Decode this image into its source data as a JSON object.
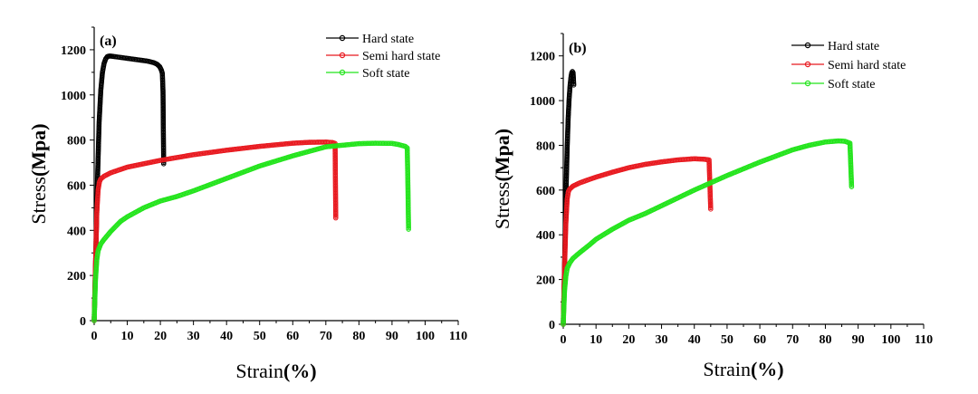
{
  "chart_data": [
    {
      "type": "line",
      "panel_label": "(a)",
      "xlabel_main": "Strain",
      "xlabel_unit": "(%)",
      "ylabel_main": "Stress",
      "ylabel_unit": "(Mpa)",
      "xlim": [
        0,
        110
      ],
      "ylim": [
        0,
        1300
      ],
      "xticks": [
        0,
        10,
        20,
        30,
        40,
        50,
        60,
        70,
        80,
        90,
        100,
        110
      ],
      "yticks": [
        0,
        200,
        400,
        600,
        800,
        1000,
        1200
      ],
      "grid": false,
      "legend_position": "top-right",
      "series": [
        {
          "name": "Hard state",
          "color": "#000000",
          "x": [
            0,
            0.5,
            1.0,
            1.5,
            2.0,
            2.5,
            3.0,
            3.5,
            4.0,
            4.5,
            5,
            6,
            8,
            10,
            12,
            14,
            16,
            18,
            19,
            19.8,
            20.3,
            20.6,
            20.8,
            20.9,
            21.0
          ],
          "y": [
            0,
            300,
            620,
            880,
            1020,
            1100,
            1140,
            1160,
            1170,
            1172,
            1172,
            1170,
            1166,
            1162,
            1158,
            1154,
            1150,
            1143,
            1136,
            1125,
            1110,
            1095,
            1015,
            850,
            695
          ]
        },
        {
          "name": "Semi hard state",
          "color": "#e8191f",
          "x": [
            0,
            0.4,
            0.8,
            1.2,
            1.6,
            2,
            3,
            5,
            8,
            10,
            15,
            20,
            30,
            40,
            50,
            60,
            65,
            70,
            72,
            72.8,
            73.0
          ],
          "y": [
            0,
            250,
            480,
            580,
            615,
            628,
            640,
            655,
            670,
            680,
            695,
            710,
            735,
            755,
            772,
            786,
            790,
            791,
            789,
            785,
            455
          ]
        },
        {
          "name": "Soft state",
          "color": "#22e41b",
          "x": [
            0,
            0.4,
            0.8,
            1.2,
            2,
            3,
            5,
            8,
            10,
            15,
            20,
            25,
            30,
            40,
            50,
            60,
            70,
            80,
            85,
            90,
            92,
            94,
            94.6,
            94.8,
            95.0
          ],
          "y": [
            0,
            180,
            270,
            310,
            340,
            360,
            395,
            440,
            460,
            500,
            530,
            550,
            575,
            630,
            685,
            730,
            770,
            784,
            786,
            785,
            780,
            772,
            765,
            600,
            405
          ]
        }
      ]
    },
    {
      "type": "line",
      "panel_label": "(b)",
      "xlabel_main": "Strain",
      "xlabel_unit": "(%)",
      "ylabel_main": "Stress",
      "ylabel_unit": "(Mpa)",
      "xlim": [
        0,
        110
      ],
      "ylim": [
        0,
        1300
      ],
      "xticks": [
        0,
        10,
        20,
        30,
        40,
        50,
        60,
        70,
        80,
        90,
        100,
        110
      ],
      "yticks": [
        0,
        200,
        400,
        600,
        800,
        1000,
        1200
      ],
      "grid": false,
      "legend_position": "top-right",
      "series": [
        {
          "name": "Hard state",
          "color": "#000000",
          "x": [
            0,
            0.3,
            0.6,
            0.9,
            1.2,
            1.5,
            1.8,
            2.1,
            2.4,
            2.6,
            2.8,
            3.0,
            3.1,
            3.2
          ],
          "y": [
            0,
            200,
            420,
            620,
            790,
            920,
            1010,
            1070,
            1110,
            1125,
            1130,
            1125,
            1100,
            1070
          ]
        },
        {
          "name": "Semi hard state",
          "color": "#e8191f",
          "x": [
            0,
            0.4,
            0.8,
            1.2,
            1.6,
            2,
            3,
            5,
            8,
            10,
            15,
            20,
            25,
            30,
            35,
            40,
            43,
            44.5,
            45.0
          ],
          "y": [
            0,
            250,
            450,
            560,
            595,
            605,
            618,
            632,
            648,
            658,
            680,
            700,
            715,
            726,
            735,
            740,
            738,
            735,
            515
          ]
        },
        {
          "name": "Soft state",
          "color": "#22e41b",
          "x": [
            0,
            0.4,
            0.8,
            1.2,
            2,
            3,
            5,
            8,
            10,
            15,
            20,
            25,
            30,
            40,
            50,
            60,
            70,
            75,
            80,
            84,
            86,
            87.5,
            88.0
          ],
          "y": [
            0,
            150,
            215,
            250,
            275,
            295,
            320,
            355,
            380,
            425,
            465,
            495,
            530,
            600,
            665,
            725,
            780,
            800,
            815,
            820,
            818,
            810,
            615
          ]
        }
      ]
    }
  ]
}
